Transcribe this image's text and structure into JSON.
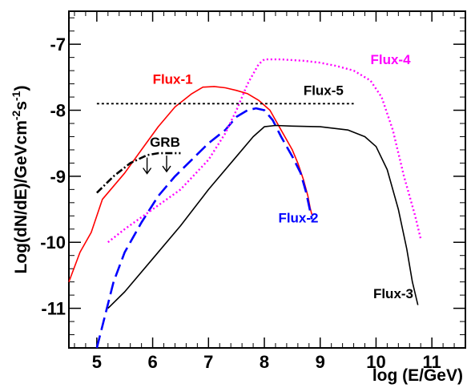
{
  "chart_data": {
    "type": "line",
    "xlabel": "log (E/GeV)",
    "ylabel": "Log(dN/dE)/GeVcm",
    "ylabel_sup1": "-2",
    "ylabel_mid": "s",
    "ylabel_sup2": "-1",
    "ylabel_end": ")",
    "xlim": [
      4.5,
      11.6
    ],
    "ylim": [
      -11.6,
      -6.5
    ],
    "x_ticks": [
      5,
      6,
      7,
      8,
      9,
      10,
      11
    ],
    "x_tick_labels": [
      "5",
      "6",
      "7",
      "8",
      "9",
      "10",
      "11"
    ],
    "y_ticks": [
      -7,
      -8,
      -9,
      -10,
      -11
    ],
    "y_tick_labels": [
      "-7",
      "-8",
      "-9",
      "-10",
      "-11"
    ],
    "grid": false,
    "series": [
      {
        "name": "Flux-1",
        "color": "#ff0000",
        "dash": "solid",
        "label_at": [
          6.0,
          -7.6
        ],
        "x": [
          4.5,
          4.7,
          4.9,
          5.1,
          5.3,
          5.5,
          5.8,
          6.1,
          6.4,
          6.7,
          6.9,
          7.1,
          7.3,
          7.5,
          7.7,
          7.9,
          8.1,
          8.3,
          8.5,
          8.6,
          8.7,
          8.78,
          8.82,
          8.85
        ],
        "y": [
          -10.6,
          -10.15,
          -9.85,
          -9.35,
          -9.15,
          -8.95,
          -8.6,
          -8.25,
          -7.95,
          -7.75,
          -7.65,
          -7.64,
          -7.66,
          -7.7,
          -7.75,
          -7.85,
          -8.0,
          -8.3,
          -8.6,
          -8.8,
          -9.05,
          -9.3,
          -9.48,
          -9.58
        ]
      },
      {
        "name": "Flux-2",
        "color": "#0000ff",
        "dash": "long-dash",
        "label_at": [
          8.25,
          -9.7
        ],
        "x": [
          5.0,
          5.3,
          5.5,
          5.8,
          6.1,
          6.4,
          6.7,
          7.0,
          7.3,
          7.5,
          7.7,
          7.85,
          8.0,
          8.15,
          8.3,
          8.5,
          8.65,
          8.75,
          8.85
        ],
        "y": [
          -11.6,
          -10.6,
          -10.15,
          -9.7,
          -9.3,
          -9.0,
          -8.75,
          -8.5,
          -8.3,
          -8.1,
          -8.0,
          -7.97,
          -8.0,
          -8.15,
          -8.4,
          -8.7,
          -8.95,
          -9.25,
          -9.65
        ]
      },
      {
        "name": "Flux-3",
        "color": "#000000",
        "dash": "solid",
        "label_at": [
          9.95,
          -10.85
        ],
        "x": [
          5.2,
          5.5,
          6.0,
          6.5,
          7.0,
          7.5,
          7.8,
          8.0,
          8.2,
          8.5,
          9.0,
          9.5,
          9.8,
          10.0,
          10.2,
          10.4,
          10.55,
          10.65,
          10.75
        ],
        "y": [
          -11.0,
          -10.75,
          -10.25,
          -9.75,
          -9.2,
          -8.7,
          -8.4,
          -8.25,
          -8.23,
          -8.24,
          -8.25,
          -8.3,
          -8.4,
          -8.55,
          -8.9,
          -9.5,
          -10.1,
          -10.6,
          -10.95
        ]
      },
      {
        "name": "Flux-4",
        "color": "#ff00ff",
        "dash": "dotted",
        "label_at": [
          9.9,
          -7.3
        ],
        "x": [
          5.2,
          5.5,
          6.0,
          6.5,
          7.0,
          7.3,
          7.5,
          7.7,
          7.9,
          8.0,
          8.3,
          8.7,
          9.0,
          9.3,
          9.6,
          9.9,
          10.1,
          10.3,
          10.5,
          10.7,
          10.8
        ],
        "y": [
          -10.0,
          -9.8,
          -9.5,
          -9.2,
          -8.75,
          -8.35,
          -8.0,
          -7.6,
          -7.3,
          -7.23,
          -7.23,
          -7.25,
          -7.28,
          -7.33,
          -7.4,
          -7.55,
          -7.8,
          -8.3,
          -9.0,
          -9.6,
          -9.95
        ]
      },
      {
        "name": "Flux-5",
        "color": "#000000",
        "dash": "fine-dotted",
        "label_at": [
          8.7,
          -7.77
        ],
        "x": [
          5.0,
          9.6
        ],
        "y": [
          -7.9,
          -7.9
        ]
      },
      {
        "name": "GRB",
        "color": "#000000",
        "dash": "dash-dot",
        "label_at": [
          5.95,
          -8.55
        ],
        "x": [
          5.0,
          5.3,
          5.6,
          5.9,
          6.1,
          6.3,
          6.5
        ],
        "y": [
          -9.25,
          -9.0,
          -8.8,
          -8.68,
          -8.65,
          -8.65,
          -8.65
        ],
        "upper_limit_arrows_x": [
          5.9,
          6.25
        ]
      }
    ]
  }
}
